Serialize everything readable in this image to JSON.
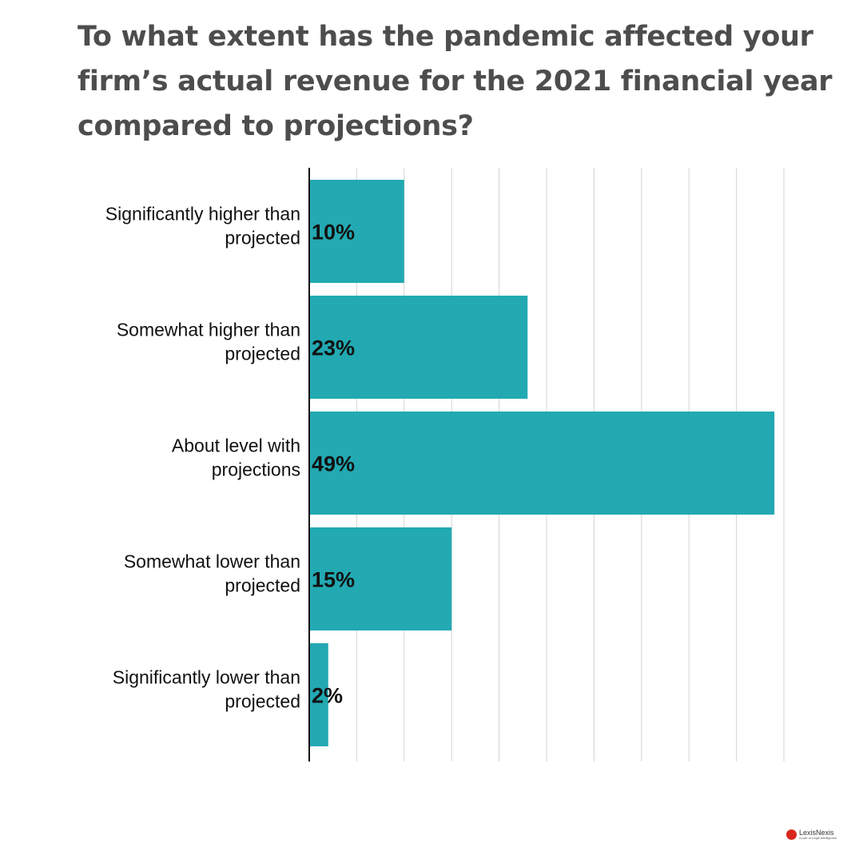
{
  "chart_data": {
    "type": "bar",
    "orientation": "horizontal",
    "title": "To what extent has the pandemic affected your firm’s actual revenue for the 2021 financial year compared to projections?",
    "categories": [
      "Significantly higher than projected",
      "Somewhat higher than projected",
      "About level with projections",
      "Somewhat lower than projected",
      "Significantly lower than projected"
    ],
    "category_lines": [
      [
        "Significantly higher than",
        "projected"
      ],
      [
        "Somewhat higher than",
        "projected"
      ],
      [
        "About level with",
        "projections"
      ],
      [
        "Somewhat lower than",
        "projected"
      ],
      [
        "Significantly lower than",
        "projected"
      ]
    ],
    "values": [
      10,
      23,
      49,
      15,
      2
    ],
    "value_labels": [
      "10%",
      "23%",
      "49%",
      "15%",
      "2%"
    ],
    "unit": "%",
    "xlim": [
      0,
      50
    ],
    "grid": true,
    "bar_color": "#22a9b2",
    "grid_color": "#d4d4d4"
  },
  "logo": {
    "name": "LexisNexis",
    "tagline": "A part of Legal Intelligence"
  }
}
